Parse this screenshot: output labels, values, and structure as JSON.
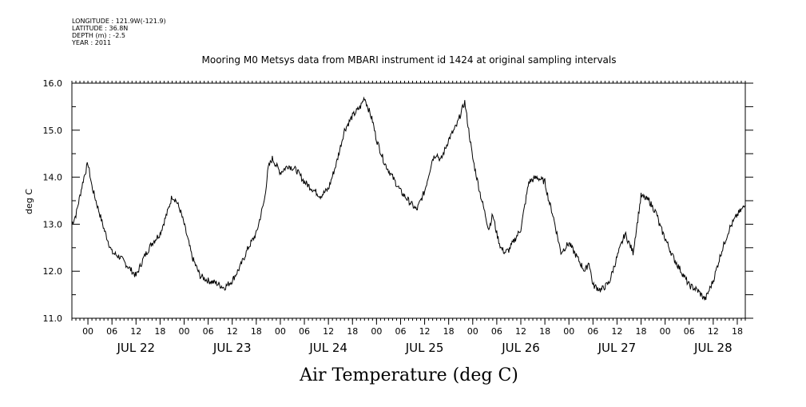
{
  "header": {
    "longitude": "LONGITUDE : 121.9W(-121.9)",
    "latitude": "LATITUDE : 36.8N",
    "depth": "DEPTH (m) : -2.5",
    "year": "YEAR : 2011"
  },
  "chart_data": {
    "type": "line",
    "title": "Mooring M0 Metsys data from MBARI instrument id 1424 at original sampling intervals",
    "xlabel": "Air Temperature (deg C)",
    "ylabel": "deg C",
    "ylim": [
      11.0,
      16.0
    ],
    "yticks": [
      "11.0",
      "12.0",
      "13.0",
      "14.0",
      "15.0",
      "16.0"
    ],
    "xlim_hours": [
      -4,
      164
    ],
    "hour_labels": [
      "00",
      "06",
      "12",
      "18",
      "00",
      "06",
      "12",
      "18",
      "00",
      "06",
      "12",
      "18",
      "00",
      "06",
      "12",
      "18",
      "00",
      "06",
      "12",
      "18",
      "00",
      "06",
      "12",
      "18",
      "00",
      "06",
      "12",
      "18"
    ],
    "day_labels": [
      "JUL 22",
      "JUL 23",
      "JUL 24",
      "JUL 25",
      "JUL 26",
      "JUL 27",
      "JUL 28"
    ],
    "grid": false,
    "series": [
      {
        "color": "#000000",
        "x": [
          -4,
          -3,
          -2,
          -1,
          0,
          1,
          2,
          4,
          6,
          8,
          10,
          12,
          13,
          14,
          16,
          18,
          20,
          21,
          22,
          23,
          24,
          26,
          28,
          30,
          32,
          34,
          36,
          38,
          40,
          42,
          44,
          45,
          46,
          48,
          50,
          52,
          54,
          56,
          58,
          60,
          62,
          64,
          66,
          68,
          69,
          70,
          71,
          72,
          74,
          76,
          78,
          80,
          82,
          84,
          86,
          87,
          88,
          90,
          92,
          94,
          96,
          98,
          100,
          101,
          102,
          103,
          104,
          105,
          106,
          108,
          110,
          112,
          114,
          115,
          116,
          118,
          120,
          122,
          124,
          125,
          126,
          128,
          130,
          132,
          134,
          136,
          138,
          140,
          142,
          142.5,
          143,
          144,
          146,
          148,
          150,
          152,
          154,
          155,
          156,
          158,
          160,
          162,
          164
        ],
        "y": [
          13.0,
          13.2,
          13.6,
          14.0,
          14.3,
          13.8,
          13.5,
          12.9,
          12.4,
          12.3,
          12.1,
          11.9,
          12.1,
          12.3,
          12.6,
          12.8,
          13.3,
          13.6,
          13.5,
          13.3,
          13.0,
          12.3,
          11.9,
          11.8,
          11.75,
          11.65,
          11.8,
          12.1,
          12.5,
          12.8,
          13.5,
          14.2,
          14.4,
          14.1,
          14.25,
          14.15,
          13.9,
          13.75,
          13.6,
          13.75,
          14.3,
          15.0,
          15.3,
          15.5,
          15.7,
          15.45,
          15.2,
          14.8,
          14.3,
          14.0,
          13.7,
          13.5,
          13.3,
          13.7,
          14.4,
          14.5,
          14.35,
          14.8,
          15.1,
          15.6,
          14.4,
          13.6,
          12.9,
          13.2,
          12.8,
          12.5,
          12.4,
          12.45,
          12.6,
          12.9,
          13.9,
          14.0,
          13.9,
          13.5,
          13.2,
          12.4,
          12.6,
          12.3,
          12.0,
          12.2,
          11.7,
          11.6,
          11.75,
          12.3,
          12.8,
          12.4,
          13.6,
          13.5,
          13.2,
          13.0,
          12.9,
          12.7,
          12.3,
          12.0,
          11.7,
          11.6,
          11.4,
          11.6,
          11.8,
          12.4,
          12.9,
          13.2,
          13.4
        ]
      }
    ]
  }
}
